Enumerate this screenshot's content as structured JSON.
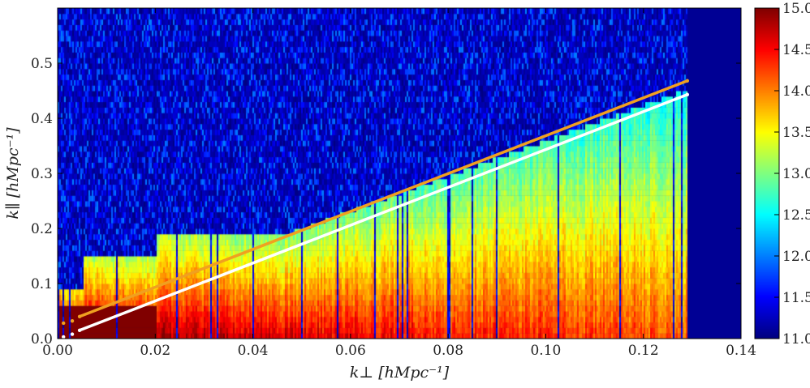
{
  "chart_data": {
    "type": "heatmap",
    "xlabel": "k⊥ [hMpc⁻¹]",
    "ylabel": "k∥ [hMpc⁻¹]",
    "xlim": [
      0.0,
      0.14
    ],
    "ylim": [
      0.0,
      0.6
    ],
    "xticks": [
      "0.00",
      "0.02",
      "0.04",
      "0.06",
      "0.08",
      "0.10",
      "0.12",
      "0.14"
    ],
    "xtick_values": [
      0,
      0.02,
      0.04,
      0.06,
      0.08,
      0.1,
      0.12,
      0.14
    ],
    "yticks": [
      "0.0",
      "0.1",
      "0.2",
      "0.3",
      "0.4",
      "0.5"
    ],
    "ytick_values": [
      0,
      0.1,
      0.2,
      0.3,
      0.4,
      0.5
    ],
    "colorbar": {
      "range": [
        11.0,
        15.0
      ],
      "ticks": [
        "11.0",
        "11.5",
        "12.0",
        "12.5",
        "13.0",
        "13.5",
        "14.0",
        "14.5",
        "15.0"
      ],
      "tick_values": [
        11.0,
        11.5,
        12.0,
        12.5,
        13.0,
        13.5,
        14.0,
        14.5,
        15.0
      ],
      "colormap": "jet"
    },
    "data_extent_kperp": 0.129,
    "lines": [
      {
        "name": "orange",
        "color": "#f0a020",
        "x": [
          0.0012,
          0.003,
          0.0045,
          0.129
        ],
        "y": [
          0.028,
          0.032,
          0.04,
          0.468
        ]
      },
      {
        "name": "white",
        "color": "#ffffff",
        "x": [
          0.0012,
          0.003,
          0.0045,
          0.129
        ],
        "y": [
          0.003,
          0.008,
          0.015,
          0.443
        ]
      }
    ]
  }
}
